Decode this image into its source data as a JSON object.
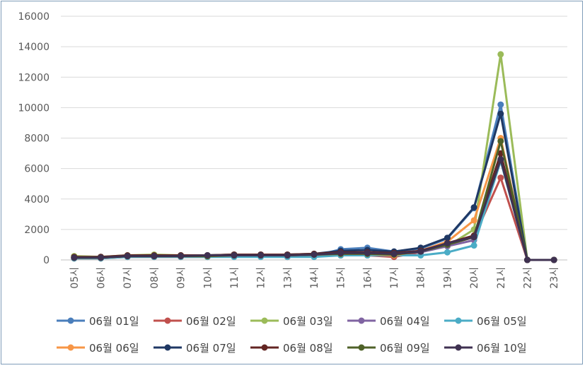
{
  "chart_data": {
    "type": "line",
    "title": "",
    "xlabel": "",
    "ylabel": "",
    "ylim": [
      0,
      16000
    ],
    "yticks": [
      0,
      2000,
      4000,
      6000,
      8000,
      10000,
      12000,
      14000,
      16000
    ],
    "grid": true,
    "legend_position": "bottom",
    "categories": [
      "05시",
      "06시",
      "07시",
      "08시",
      "09시",
      "10시",
      "11시",
      "12시",
      "13시",
      "14시",
      "15시",
      "16시",
      "17시",
      "18시",
      "19시",
      "20시",
      "21시",
      "22시",
      "23시"
    ],
    "series": [
      {
        "name": "06월 01일",
        "color": "#4a7ebb",
        "values": [
          150,
          150,
          250,
          250,
          250,
          250,
          300,
          250,
          250,
          250,
          700,
          800,
          550,
          750,
          1400,
          3400,
          10200,
          0,
          0
        ]
      },
      {
        "name": "06월 02일",
        "color": "#c0504d",
        "values": [
          100,
          100,
          200,
          200,
          200,
          200,
          250,
          250,
          200,
          300,
          300,
          300,
          200,
          500,
          1000,
          1500,
          5400,
          0,
          0
        ]
      },
      {
        "name": "06월 03일",
        "color": "#9bbb59",
        "values": [
          250,
          200,
          300,
          350,
          300,
          300,
          350,
          300,
          300,
          350,
          400,
          450,
          400,
          550,
          900,
          2000,
          13500,
          0,
          0
        ]
      },
      {
        "name": "06월 04일",
        "color": "#8064a2",
        "values": [
          150,
          150,
          250,
          250,
          250,
          300,
          300,
          300,
          300,
          400,
          400,
          450,
          400,
          500,
          900,
          1300,
          6600,
          0,
          0
        ]
      },
      {
        "name": "06월 05일",
        "color": "#4bacc6",
        "values": [
          100,
          100,
          200,
          200,
          200,
          200,
          200,
          200,
          200,
          200,
          300,
          300,
          300,
          300,
          500,
          950,
          6500,
          0,
          0
        ]
      },
      {
        "name": "06월 06일",
        "color": "#f79646",
        "values": [
          150,
          150,
          250,
          250,
          250,
          250,
          300,
          300,
          300,
          350,
          400,
          400,
          300,
          600,
          1200,
          2600,
          8000,
          0,
          0
        ]
      },
      {
        "name": "06월 07일",
        "color": "#1f3864",
        "values": [
          150,
          200,
          250,
          250,
          300,
          300,
          350,
          350,
          350,
          400,
          600,
          650,
          550,
          800,
          1450,
          3450,
          9600,
          0,
          0
        ]
      },
      {
        "name": "06월 08일",
        "color": "#632523",
        "values": [
          200,
          200,
          300,
          300,
          300,
          300,
          350,
          350,
          350,
          400,
          500,
          500,
          450,
          600,
          1100,
          1600,
          7000,
          0,
          0
        ]
      },
      {
        "name": "06월 09일",
        "color": "#4f6228",
        "values": [
          150,
          150,
          250,
          250,
          250,
          250,
          300,
          300,
          300,
          350,
          400,
          400,
          350,
          550,
          1000,
          1500,
          7800,
          0,
          0
        ]
      },
      {
        "name": "06월 10일",
        "color": "#3f3151",
        "values": [
          150,
          150,
          250,
          250,
          250,
          300,
          300,
          300,
          300,
          350,
          450,
          450,
          400,
          550,
          1100,
          1500,
          6600,
          0,
          0
        ]
      }
    ]
  }
}
